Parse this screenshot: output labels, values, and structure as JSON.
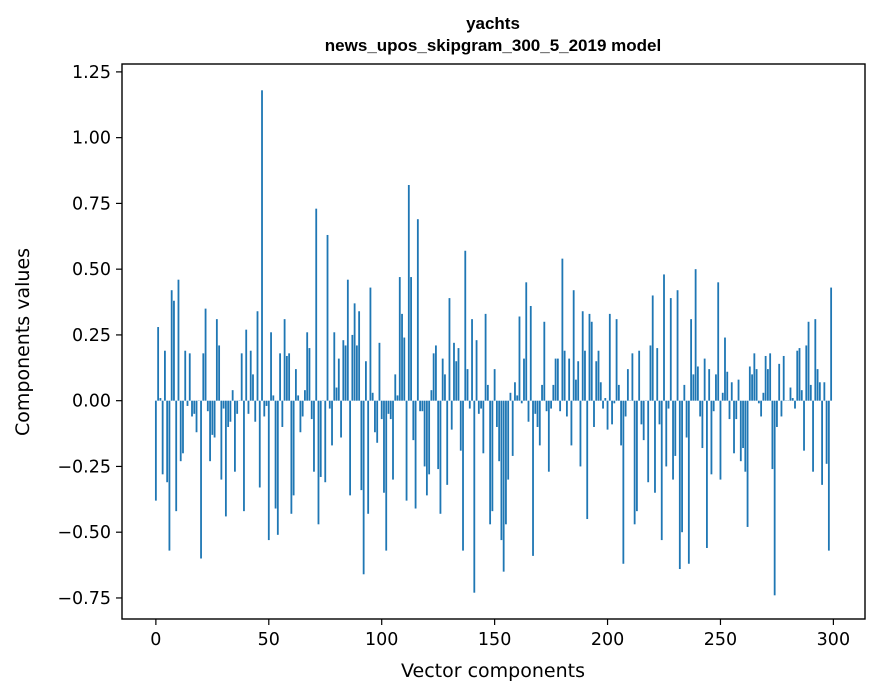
{
  "chart_data": {
    "type": "bar",
    "title_lines": [
      "yachts",
      "news_upos_skipgram_300_5_2019 model"
    ],
    "xlabel": "Vector components",
    "ylabel": "Components values",
    "xlim": [
      -15,
      314
    ],
    "ylim": [
      -0.83,
      1.28
    ],
    "xticks": [
      0,
      50,
      100,
      150,
      200,
      250,
      300
    ],
    "xtick_labels": [
      "0",
      "50",
      "100",
      "150",
      "200",
      "250",
      "300"
    ],
    "yticks": [
      -0.75,
      -0.5,
      -0.25,
      0.0,
      0.25,
      0.5,
      0.75,
      1.0,
      1.25
    ],
    "ytick_labels": [
      "−0.75",
      "−0.50",
      "−0.25",
      "0.00",
      "0.25",
      "0.50",
      "0.75",
      "1.00",
      "1.25"
    ],
    "bar_color": "#1f77b4",
    "x": [
      0,
      1,
      2,
      3,
      4,
      5,
      6,
      7,
      8,
      9,
      10,
      11,
      12,
      13,
      14,
      15,
      16,
      17,
      18,
      19,
      20,
      21,
      22,
      23,
      24,
      25,
      26,
      27,
      28,
      29,
      30,
      31,
      32,
      33,
      34,
      35,
      36,
      37,
      38,
      39,
      40,
      41,
      42,
      43,
      44,
      45,
      46,
      47,
      48,
      49,
      50,
      51,
      52,
      53,
      54,
      55,
      56,
      57,
      58,
      59,
      60,
      61,
      62,
      63,
      64,
      65,
      66,
      67,
      68,
      69,
      70,
      71,
      72,
      73,
      74,
      75,
      76,
      77,
      78,
      79,
      80,
      81,
      82,
      83,
      84,
      85,
      86,
      87,
      88,
      89,
      90,
      91,
      92,
      93,
      94,
      95,
      96,
      97,
      98,
      99,
      100,
      101,
      102,
      103,
      104,
      105,
      106,
      107,
      108,
      109,
      110,
      111,
      112,
      113,
      114,
      115,
      116,
      117,
      118,
      119,
      120,
      121,
      122,
      123,
      124,
      125,
      126,
      127,
      128,
      129,
      130,
      131,
      132,
      133,
      134,
      135,
      136,
      137,
      138,
      139,
      140,
      141,
      142,
      143,
      144,
      145,
      146,
      147,
      148,
      149,
      150,
      151,
      152,
      153,
      154,
      155,
      156,
      157,
      158,
      159,
      160,
      161,
      162,
      163,
      164,
      165,
      166,
      167,
      168,
      169,
      170,
      171,
      172,
      173,
      174,
      175,
      176,
      177,
      178,
      179,
      180,
      181,
      182,
      183,
      184,
      185,
      186,
      187,
      188,
      189,
      190,
      191,
      192,
      193,
      194,
      195,
      196,
      197,
      198,
      199,
      200,
      201,
      202,
      203,
      204,
      205,
      206,
      207,
      208,
      209,
      210,
      211,
      212,
      213,
      214,
      215,
      216,
      217,
      218,
      219,
      220,
      221,
      222,
      223,
      224,
      225,
      226,
      227,
      228,
      229,
      230,
      231,
      232,
      233,
      234,
      235,
      236,
      237,
      238,
      239,
      240,
      241,
      242,
      243,
      244,
      245,
      246,
      247,
      248,
      249,
      250,
      251,
      252,
      253,
      254,
      255,
      256,
      257,
      258,
      259,
      260,
      261,
      262,
      263,
      264,
      265,
      266,
      267,
      268,
      269,
      270,
      271,
      272,
      273,
      274,
      275,
      276,
      277,
      278,
      279,
      280,
      281,
      282,
      283,
      284,
      285,
      286,
      287,
      288,
      289,
      290,
      291,
      292,
      293,
      294,
      295,
      296,
      297,
      298,
      299
    ],
    "values": [
      -0.38,
      0.28,
      0.01,
      -0.28,
      0.19,
      -0.31,
      -0.57,
      0.42,
      0.38,
      -0.42,
      0.46,
      -0.23,
      -0.2,
      0.19,
      -0.02,
      0.18,
      -0.06,
      -0.05,
      -0.12,
      0.0,
      -0.6,
      0.18,
      0.35,
      -0.04,
      -0.23,
      -0.13,
      -0.14,
      0.31,
      0.21,
      -0.3,
      -0.03,
      -0.44,
      -0.1,
      -0.08,
      0.04,
      -0.27,
      -0.05,
      0.0,
      0.18,
      -0.42,
      0.27,
      -0.05,
      0.19,
      0.1,
      -0.08,
      0.34,
      -0.33,
      1.18,
      -0.06,
      -0.02,
      -0.53,
      0.26,
      0.02,
      -0.41,
      -0.51,
      0.18,
      -0.1,
      0.31,
      0.17,
      0.18,
      -0.43,
      -0.36,
      0.12,
      0.02,
      -0.12,
      -0.06,
      0.04,
      0.26,
      0.2,
      -0.07,
      -0.27,
      0.73,
      -0.47,
      -0.29,
      0.0,
      -0.31,
      0.63,
      -0.03,
      -0.17,
      0.26,
      0.05,
      0.16,
      -0.14,
      0.23,
      0.21,
      0.46,
      -0.36,
      0.25,
      0.37,
      0.21,
      0.34,
      -0.34,
      -0.66,
      0.15,
      -0.43,
      0.43,
      0.03,
      -0.12,
      -0.16,
      0.22,
      -0.07,
      -0.35,
      -0.57,
      -0.05,
      -0.07,
      -0.3,
      0.1,
      0.02,
      0.47,
      0.33,
      0.24,
      -0.38,
      0.82,
      0.47,
      -0.15,
      -0.41,
      0.69,
      -0.04,
      -0.04,
      -0.25,
      -0.36,
      -0.28,
      0.04,
      0.18,
      0.21,
      -0.26,
      -0.43,
      0.16,
      0.1,
      -0.32,
      0.39,
      -0.11,
      0.22,
      0.15,
      0.2,
      -0.19,
      -0.57,
      0.57,
      0.12,
      -0.03,
      0.31,
      -0.73,
      0.23,
      -0.05,
      -0.03,
      -0.2,
      0.33,
      0.06,
      -0.47,
      -0.42,
      0.12,
      -0.1,
      -0.23,
      -0.53,
      -0.65,
      -0.47,
      -0.3,
      0.03,
      -0.21,
      0.07,
      0.02,
      0.32,
      -0.01,
      0.16,
      0.45,
      -0.08,
      0.36,
      -0.59,
      -0.05,
      -0.1,
      -0.17,
      0.06,
      0.3,
      -0.04,
      -0.27,
      -0.03,
      0.06,
      0.16,
      0.16,
      -0.04,
      0.54,
      0.19,
      -0.06,
      0.16,
      -0.17,
      0.42,
      0.08,
      0.15,
      -0.25,
      0.34,
      0.19,
      -0.45,
      0.33,
      0.3,
      -0.1,
      0.15,
      0.19,
      0.07,
      -0.03,
      0.01,
      -0.11,
      0.33,
      -0.09,
      -0.01,
      0.31,
      0.06,
      -0.17,
      -0.62,
      -0.06,
      0.12,
      0.0,
      0.18,
      -0.47,
      -0.42,
      0.19,
      -0.09,
      -0.15,
      0.0,
      -0.31,
      0.21,
      0.4,
      -0.35,
      0.2,
      -0.09,
      -0.53,
      0.48,
      -0.25,
      -0.03,
      0.39,
      -0.3,
      -0.21,
      0.42,
      -0.64,
      -0.5,
      0.06,
      -0.14,
      -0.62,
      0.31,
      0.1,
      0.5,
      0.13,
      -0.06,
      -0.18,
      0.16,
      -0.56,
      0.12,
      -0.28,
      -0.04,
      0.1,
      0.45,
      -0.3,
      0.03,
      0.24,
      0.11,
      -0.07,
      0.07,
      -0.2,
      -0.07,
      0.08,
      -0.23,
      -0.18,
      -0.27,
      -0.48,
      0.13,
      0.1,
      0.18,
      0.12,
      -0.01,
      -0.06,
      0.03,
      0.17,
      0.12,
      0.18,
      -0.26,
      -0.74,
      -0.1,
      0.14,
      -0.06,
      0.17,
      0.0,
      0.0,
      0.05,
      0.01,
      -0.03,
      0.19,
      0.2,
      0.04,
      -0.19,
      0.21,
      0.3,
      0.06,
      -0.27,
      0.31,
      0.12,
      0.07,
      -0.32,
      0.07,
      -0.24,
      -0.57,
      0.43
    ]
  }
}
